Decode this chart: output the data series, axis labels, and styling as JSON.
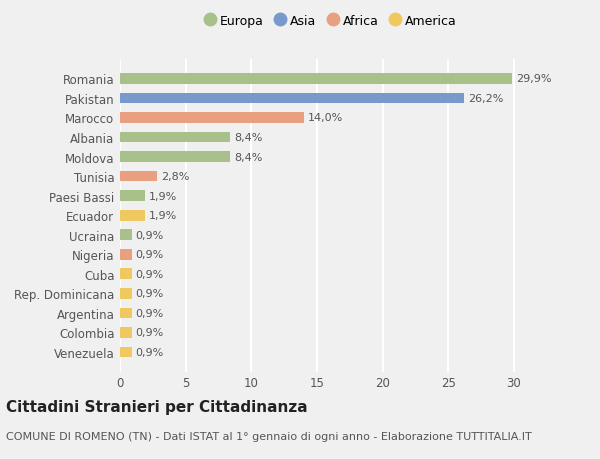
{
  "categories": [
    "Venezuela",
    "Colombia",
    "Argentina",
    "Rep. Dominicana",
    "Cuba",
    "Nigeria",
    "Ucraina",
    "Ecuador",
    "Paesi Bassi",
    "Tunisia",
    "Moldova",
    "Albania",
    "Marocco",
    "Pakistan",
    "Romania"
  ],
  "values": [
    0.9,
    0.9,
    0.9,
    0.9,
    0.9,
    0.9,
    0.9,
    1.9,
    1.9,
    2.8,
    8.4,
    8.4,
    14.0,
    26.2,
    29.9
  ],
  "continents": [
    "America",
    "America",
    "America",
    "America",
    "America",
    "Africa",
    "Europa",
    "America",
    "Europa",
    "Africa",
    "Europa",
    "Europa",
    "Africa",
    "Asia",
    "Europa"
  ],
  "colors": {
    "Europa": "#a8c08a",
    "Asia": "#7799cc",
    "Africa": "#e8a080",
    "America": "#f0c860"
  },
  "labels": [
    "0,9%",
    "0,9%",
    "0,9%",
    "0,9%",
    "0,9%",
    "0,9%",
    "0,9%",
    "1,9%",
    "1,9%",
    "2,8%",
    "8,4%",
    "8,4%",
    "14,0%",
    "26,2%",
    "29,9%"
  ],
  "title": "Cittadini Stranieri per Cittadinanza",
  "subtitle": "COMUNE DI ROMENO (TN) - Dati ISTAT al 1° gennaio di ogni anno - Elaborazione TUTTITALIA.IT",
  "xlim": [
    0,
    32
  ],
  "xticks": [
    0,
    5,
    10,
    15,
    20,
    25,
    30
  ],
  "legend_order": [
    "Europa",
    "Asia",
    "Africa",
    "America"
  ],
  "bg_color": "#f0f0f0",
  "plot_bg_color": "#f0f0f0",
  "bar_height": 0.55,
  "label_fontsize": 8.0,
  "ytick_fontsize": 8.5,
  "xtick_fontsize": 8.5,
  "title_fontsize": 11,
  "subtitle_fontsize": 8.0
}
